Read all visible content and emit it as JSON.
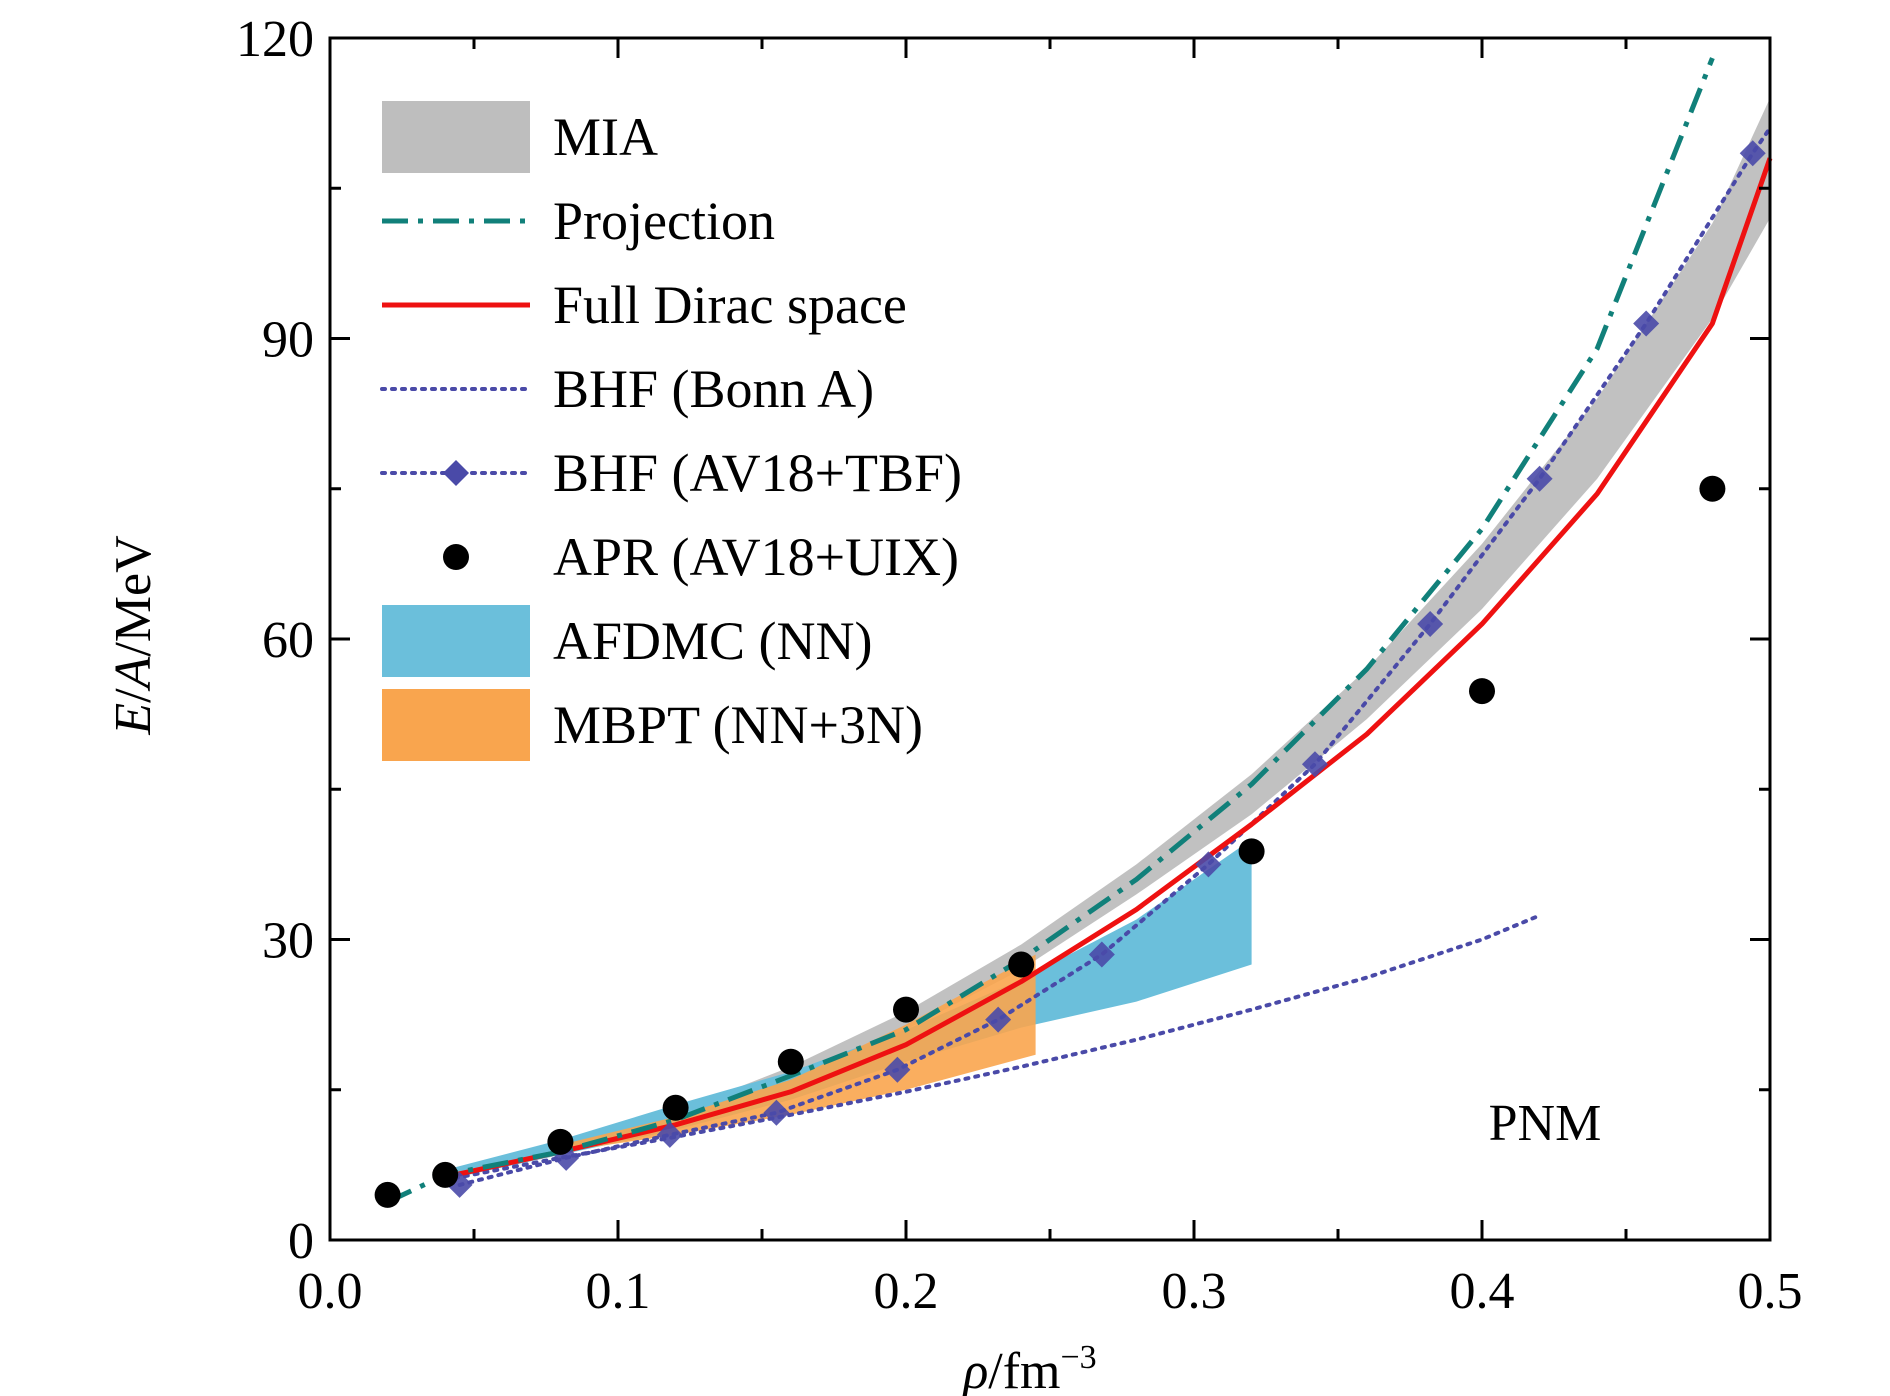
{
  "chart_data": {
    "type": "line",
    "xlabel": {
      "var": "ρ",
      "unit": "/fm",
      "sup": "−3"
    },
    "ylabel": {
      "var1": "E",
      "sep": "/",
      "var2": "A",
      "unit": "/MeV"
    },
    "xlim": [
      0.0,
      0.5
    ],
    "ylim": [
      0,
      120
    ],
    "xticks": [
      "0.0",
      "0.1",
      "0.2",
      "0.3",
      "0.4",
      "0.5"
    ],
    "yticks": [
      "0",
      "30",
      "60",
      "90",
      "120"
    ],
    "annotation": "PNM",
    "legend_position": "top-left",
    "colors": {
      "MIA": "#bebebe",
      "Projection": "#11807a",
      "Full Dirac space": "#ee1111",
      "BHF": "#4a4aa8",
      "APR": "#000000",
      "AFDMC": "#6bbfdb",
      "MBPT": "#f9a54e"
    },
    "legend": [
      {
        "key": "mia",
        "label": "MIA"
      },
      {
        "key": "proj",
        "label": "Projection"
      },
      {
        "key": "full",
        "label": "Full Dirac space"
      },
      {
        "key": "bonn",
        "label": "BHF (Bonn A)"
      },
      {
        "key": "av18",
        "label": "BHF (AV18+TBF)"
      },
      {
        "key": "apr",
        "label": "APR (AV18+UIX)"
      },
      {
        "key": "afdmc",
        "label": "AFDMC (NN)"
      },
      {
        "key": "mbpt",
        "label": "MBPT (NN+3N)"
      }
    ],
    "series": [
      {
        "key": "mia",
        "kind": "band",
        "x": [
          0.04,
          0.08,
          0.12,
          0.16,
          0.2,
          0.24,
          0.28,
          0.32,
          0.36,
          0.4,
          0.44,
          0.48,
          0.5
        ],
        "lower": [
          6.3,
          8.8,
          12.0,
          16.0,
          21.0,
          27.0,
          34.5,
          42.5,
          52.0,
          63.0,
          76.0,
          92.0,
          102.0
        ],
        "upper": [
          6.8,
          9.3,
          12.8,
          17.3,
          22.8,
          29.5,
          37.5,
          46.5,
          57.0,
          69.5,
          84.0,
          101.5,
          114.0
        ]
      },
      {
        "key": "proj",
        "kind": "line",
        "x": [
          0.02,
          0.04,
          0.08,
          0.12,
          0.16,
          0.2,
          0.24,
          0.28,
          0.32,
          0.36,
          0.4,
          0.44,
          0.48
        ],
        "y": [
          3.8,
          6.5,
          8.8,
          12.0,
          16.4,
          21.0,
          28.0,
          36.0,
          45.5,
          57.0,
          71.0,
          89.0,
          118.0
        ]
      },
      {
        "key": "full",
        "kind": "line",
        "x": [
          0.04,
          0.08,
          0.12,
          0.16,
          0.2,
          0.24,
          0.28,
          0.32,
          0.36,
          0.4,
          0.44,
          0.48,
          0.5
        ],
        "y": [
          6.3,
          8.8,
          11.5,
          14.8,
          19.5,
          25.8,
          33.0,
          41.5,
          50.5,
          61.5,
          74.5,
          91.5,
          108.0
        ]
      },
      {
        "key": "bonn",
        "kind": "line",
        "x": [
          0.04,
          0.08,
          0.12,
          0.16,
          0.2,
          0.24,
          0.28,
          0.32,
          0.36,
          0.4,
          0.42
        ],
        "y": [
          6.0,
          8.2,
          10.3,
          12.5,
          14.8,
          17.3,
          20.0,
          23.0,
          26.2,
          30.0,
          32.4
        ]
      },
      {
        "key": "av18",
        "kind": "line_markers",
        "x": [
          0.045,
          0.082,
          0.118,
          0.155,
          0.197,
          0.232,
          0.268,
          0.305,
          0.342,
          0.382,
          0.42,
          0.457,
          0.494,
          0.5
        ],
        "y": [
          5.5,
          8.2,
          10.5,
          12.7,
          17.0,
          22.0,
          28.5,
          37.5,
          47.5,
          61.5,
          76.0,
          91.5,
          108.5,
          111.0
        ]
      },
      {
        "key": "apr",
        "kind": "scatter",
        "x": [
          0.02,
          0.04,
          0.08,
          0.12,
          0.16,
          0.2,
          0.24,
          0.32,
          0.4,
          0.48
        ],
        "y": [
          4.5,
          6.5,
          9.8,
          13.2,
          17.8,
          23.0,
          27.5,
          38.8,
          54.8,
          75.0
        ]
      },
      {
        "key": "afdmc",
        "kind": "band",
        "x": [
          0.04,
          0.08,
          0.12,
          0.16,
          0.2,
          0.24,
          0.28,
          0.32
        ],
        "lower": [
          6.0,
          8.5,
          11.0,
          14.0,
          17.8,
          21.2,
          23.8,
          27.5
        ],
        "upper": [
          7.0,
          10.0,
          13.5,
          16.8,
          21.0,
          26.0,
          32.0,
          40.0
        ]
      },
      {
        "key": "mbpt",
        "kind": "band",
        "x": [
          0.08,
          0.12,
          0.16,
          0.2,
          0.245
        ],
        "lower": [
          8.8,
          10.5,
          12.5,
          15.0,
          18.5
        ],
        "upper": [
          9.5,
          12.3,
          16.0,
          21.5,
          28.5
        ]
      }
    ]
  }
}
